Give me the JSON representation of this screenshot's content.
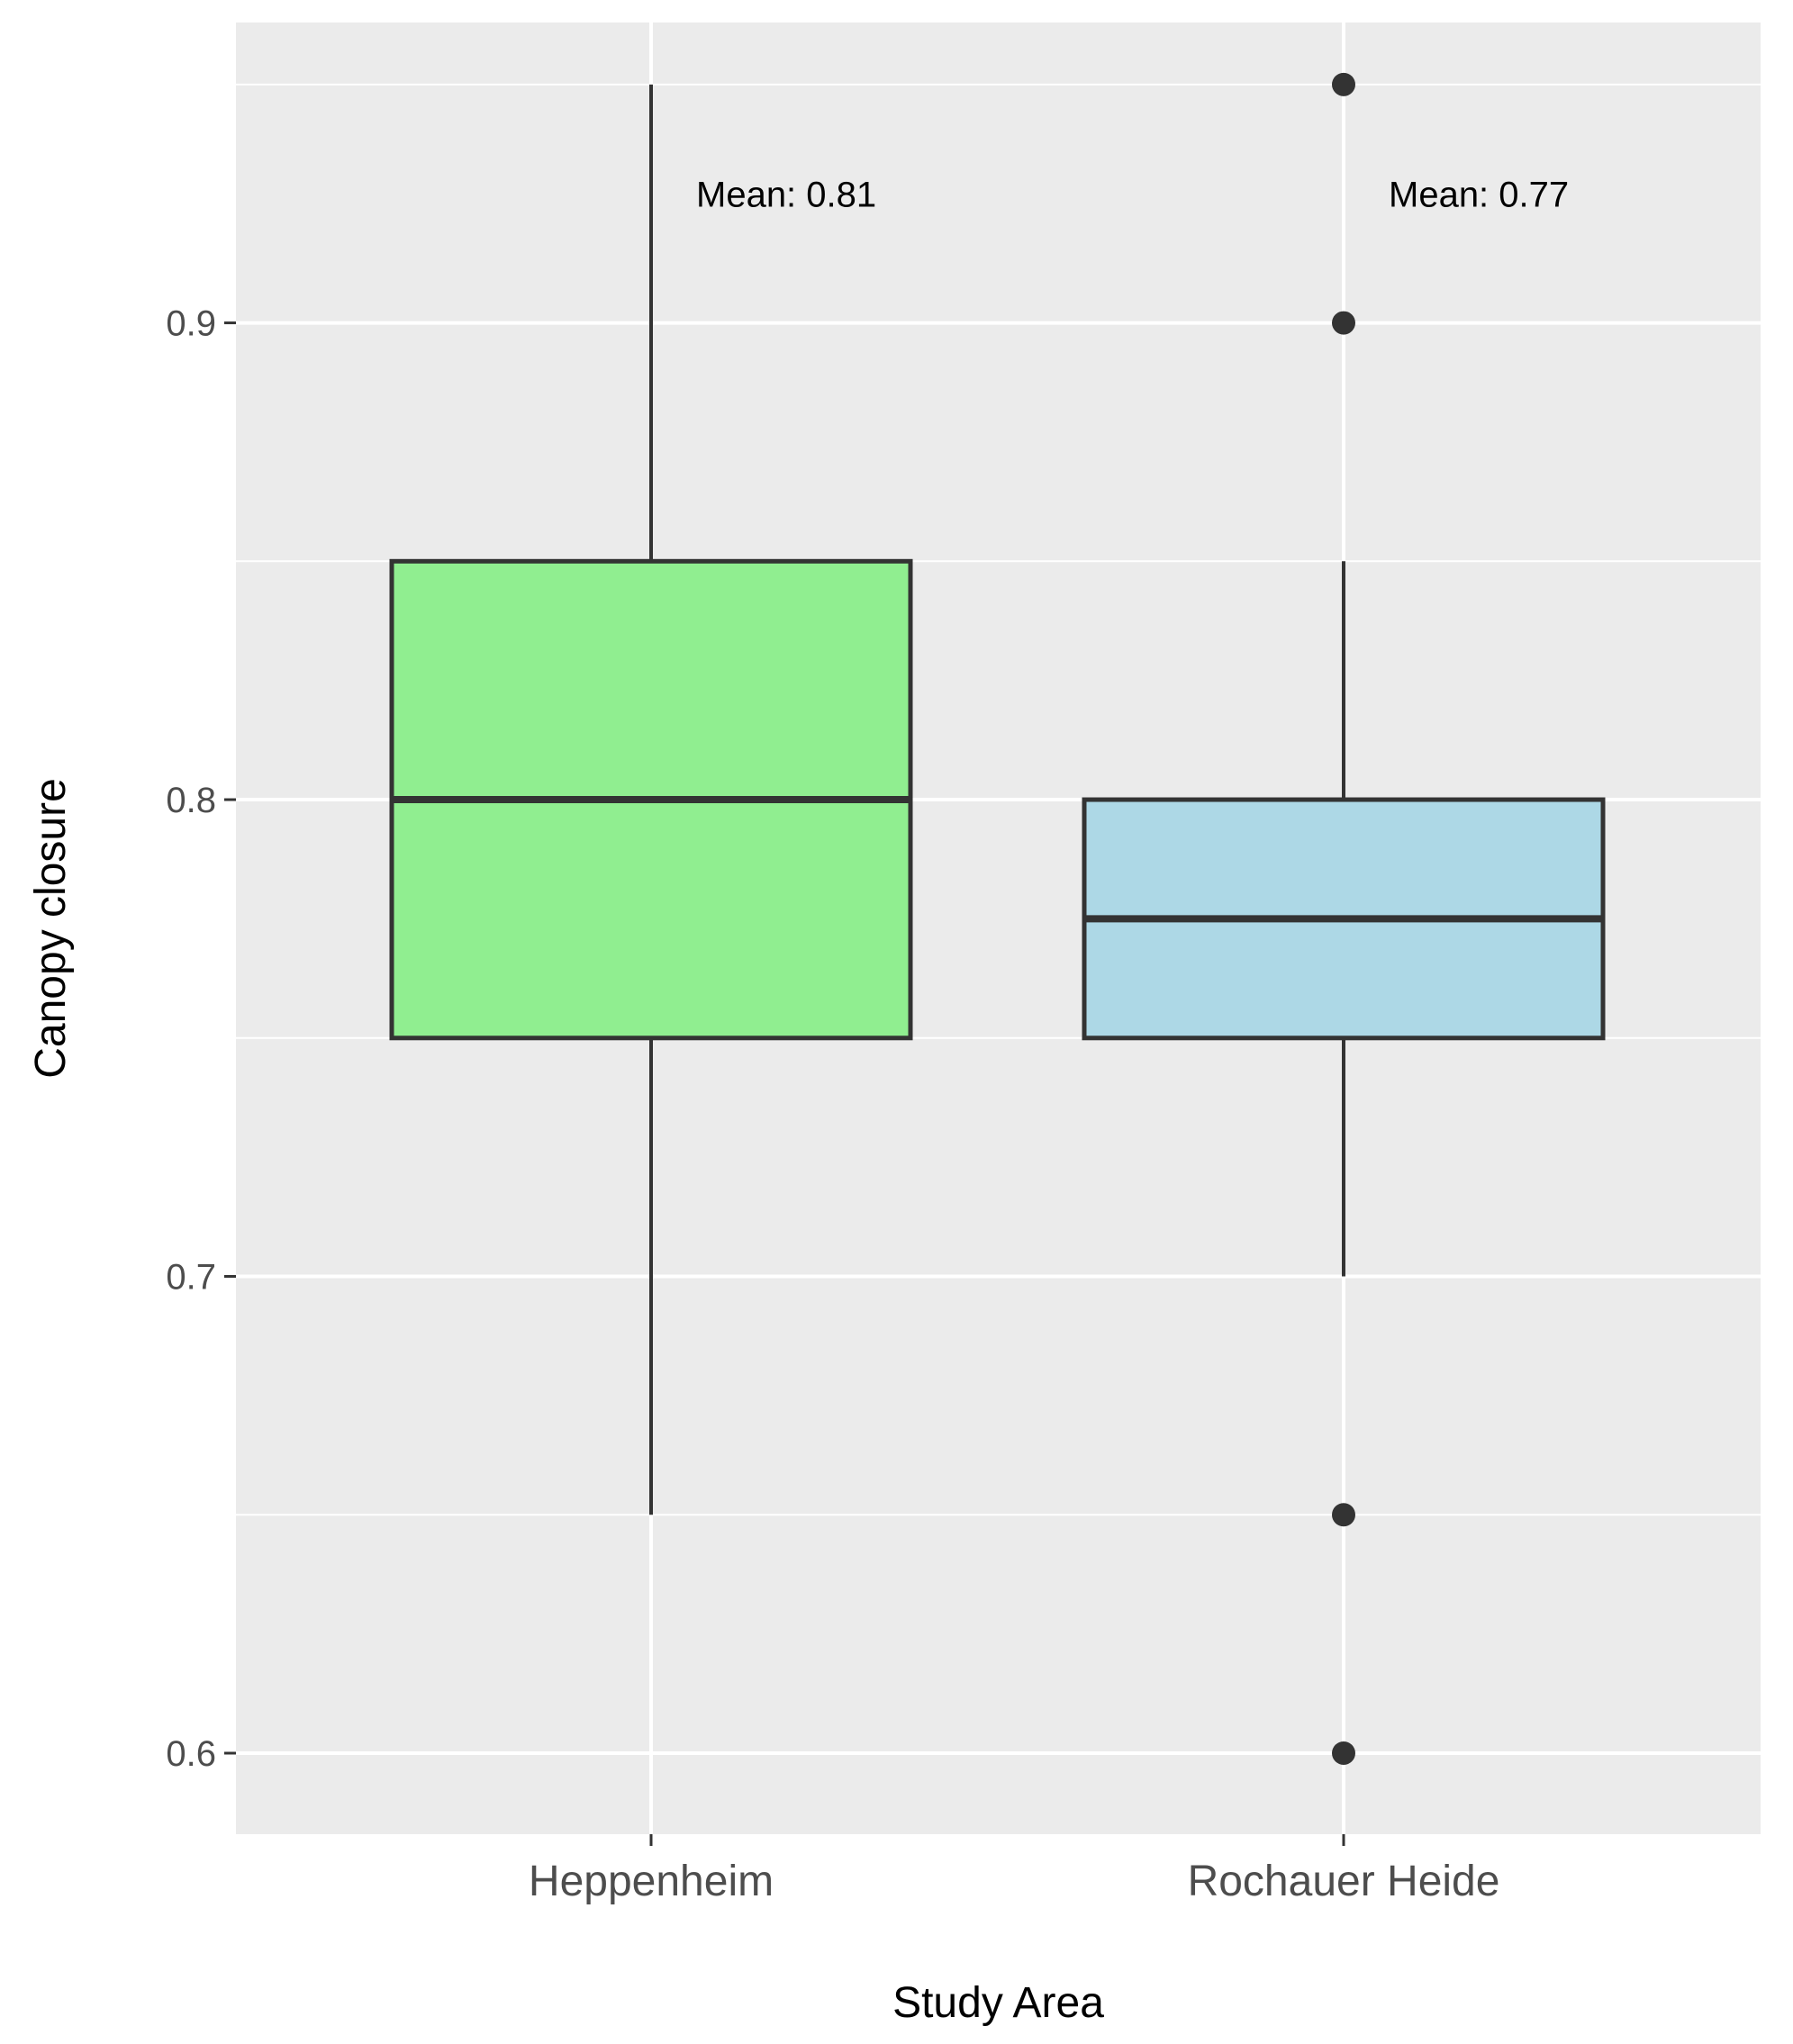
{
  "chart_data": {
    "type": "boxplot",
    "title": "",
    "xlabel": "Study Area",
    "ylabel": "Canopy closure",
    "categories": [
      "Heppenheim",
      "Rochauer Heide"
    ],
    "ylim": [
      0.583,
      0.963
    ],
    "yticks": [
      0.6,
      0.7,
      0.8,
      0.9
    ],
    "ytick_labels": [
      "0.6",
      "0.7",
      "0.8",
      "0.9"
    ],
    "grid": true,
    "legend": "none",
    "boxes": [
      {
        "category": "Heppenheim",
        "whisker_low": 0.65,
        "q1": 0.75,
        "median": 0.8,
        "q3": 0.85,
        "whisker_high": 0.95,
        "outliers": [],
        "fill": "#90EE90",
        "mean_label": "Mean: 0.81"
      },
      {
        "category": "Rochauer Heide",
        "whisker_low": 0.7,
        "q1": 0.75,
        "median": 0.775,
        "q3": 0.8,
        "whisker_high": 0.85,
        "outliers": [
          0.95,
          0.9,
          0.65,
          0.6
        ],
        "fill": "#ADD8E6",
        "mean_label": "Mean: 0.77"
      }
    ],
    "annotation_y": 0.927
  },
  "colors": {
    "panel": "#EBEBEB",
    "grid": "#FFFFFF",
    "box_outline": "#333333",
    "tick": "#333333"
  }
}
